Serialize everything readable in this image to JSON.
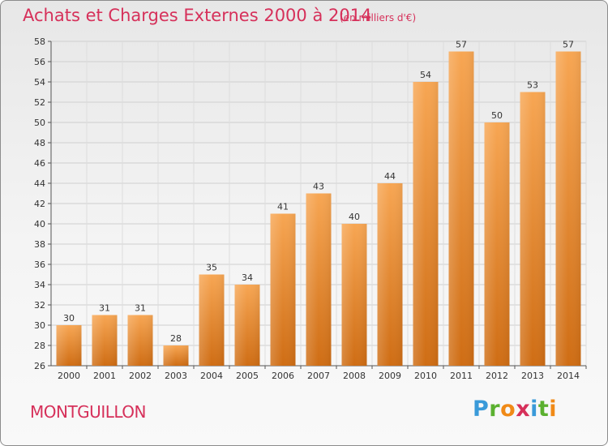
{
  "header": {
    "title": "Achats et Charges Externes 2000 à 2014",
    "unit": "(en milliers d'€)"
  },
  "footer": {
    "commune": "MONTGUILLON",
    "logo_text": "Proxiti",
    "logo_letters": [
      {
        "ch": "P",
        "color": "#3a9ad9"
      },
      {
        "ch": "r",
        "color": "#5bb030"
      },
      {
        "ch": "o",
        "color": "#f08a17"
      },
      {
        "ch": "x",
        "color": "#d6305a"
      },
      {
        "ch": "i",
        "color": "#3a9ad9"
      },
      {
        "ch": "t",
        "color": "#5bb030"
      },
      {
        "ch": "i",
        "color": "#f08a17"
      }
    ]
  },
  "colors": {
    "bar_light": "#f7a653",
    "bar_dark": "#cf6d14",
    "accent": "#d6305a"
  },
  "chart_data": {
    "type": "bar",
    "title": "Achats et Charges Externes 2000 à 2014",
    "subtitle": "(en milliers d'€)",
    "categories": [
      "2000",
      "2001",
      "2002",
      "2003",
      "2004",
      "2005",
      "2006",
      "2007",
      "2008",
      "2009",
      "2010",
      "2011",
      "2012",
      "2013",
      "2014"
    ],
    "values": [
      30,
      31,
      31,
      28,
      35,
      34,
      41,
      43,
      40,
      44,
      54,
      57,
      50,
      53,
      57
    ],
    "ylim": [
      26,
      58
    ],
    "yticks": [
      26,
      28,
      30,
      32,
      34,
      36,
      38,
      40,
      42,
      44,
      46,
      48,
      50,
      52,
      54,
      56,
      58
    ],
    "grid": true,
    "xlabel": "",
    "ylabel": ""
  }
}
